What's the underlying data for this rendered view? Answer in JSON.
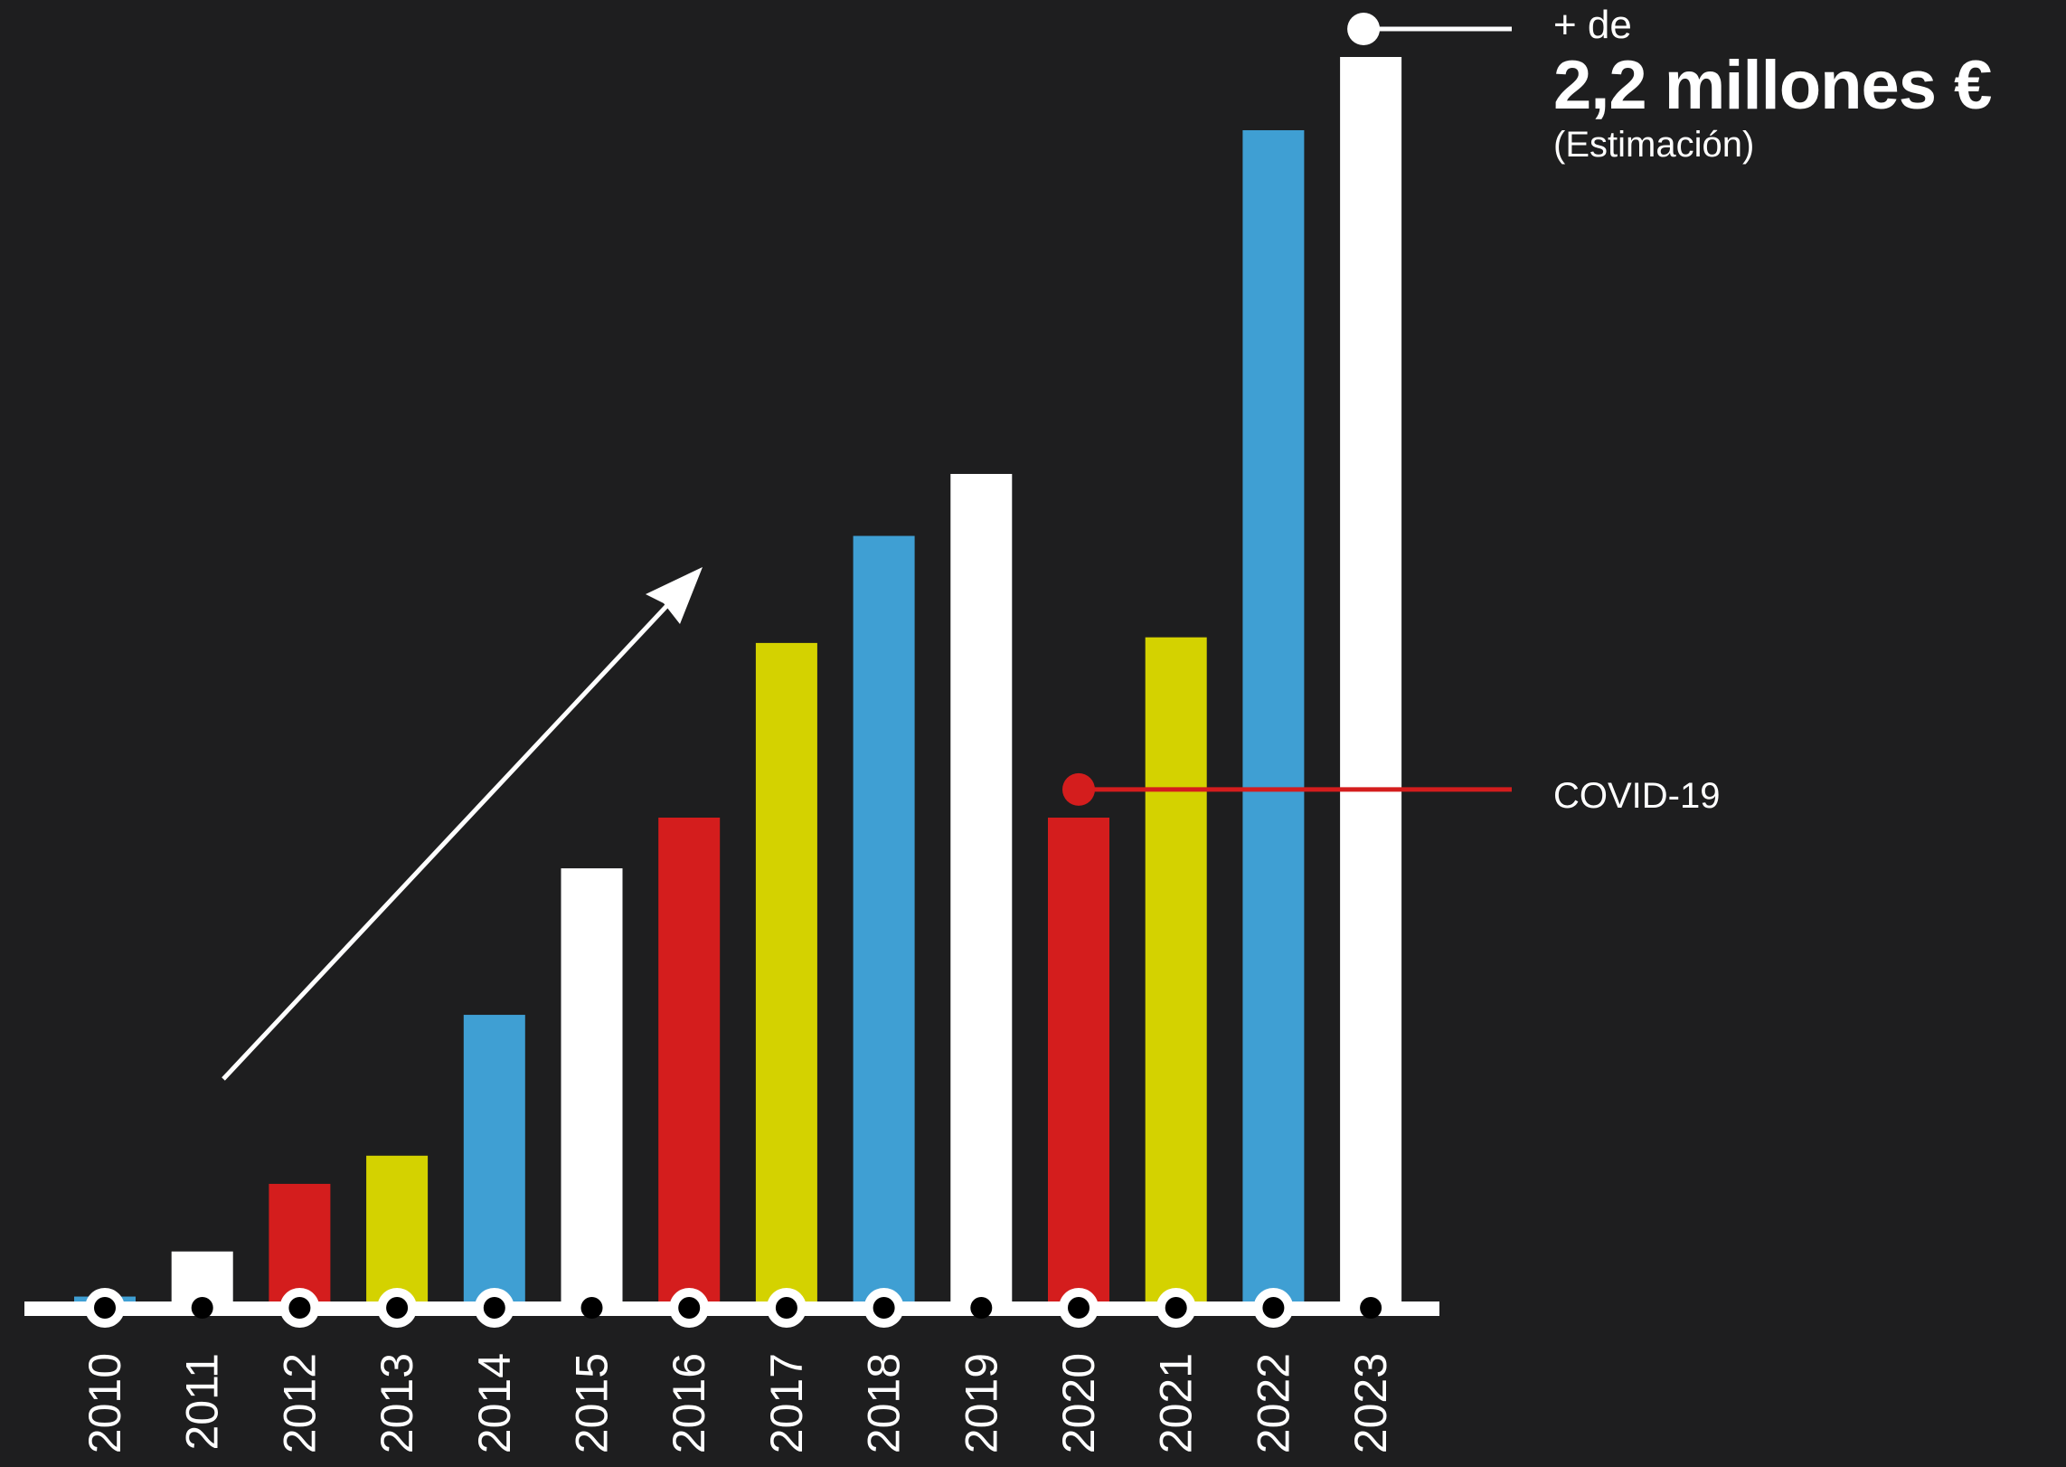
{
  "chart_data": {
    "type": "bar",
    "title": "",
    "xlabel": "",
    "ylabel": "",
    "categories": [
      "2010",
      "2011",
      "2012",
      "2013",
      "2014",
      "2015",
      "2016",
      "2017",
      "2018",
      "2019",
      "2020",
      "2021",
      "2022",
      "2023"
    ],
    "values": [
      0.02,
      0.1,
      0.22,
      0.27,
      0.52,
      0.78,
      0.87,
      1.18,
      1.37,
      1.48,
      0.87,
      1.19,
      2.09,
      2.22
    ],
    "ylim": [
      0,
      2.3
    ],
    "bar_colors": [
      "#3f9fd3",
      "#ffffff",
      "#d41d1d",
      "#d4d200",
      "#3f9fd3",
      "#ffffff",
      "#d41d1d",
      "#d4d200",
      "#3f9fd3",
      "#ffffff",
      "#d41d1d",
      "#d4d200",
      "#3f9fd3",
      "#ffffff"
    ],
    "axis_dot_style": [
      "ring",
      "dot",
      "ring",
      "ring",
      "ring",
      "dot",
      "ring",
      "ring",
      "ring",
      "dot",
      "ring",
      "ring",
      "ring",
      "dot"
    ],
    "grid": false,
    "legend": "none",
    "trend_arrow": true,
    "covid_marker_year": "2020",
    "covid_marker_value": 0.92,
    "top_marker_year": "2023"
  },
  "annotations": {
    "top_prefix": "+ de",
    "top_value": "2,2 millones €",
    "top_note": "(Estimación)",
    "covid_label": "COVID-19"
  },
  "colors": {
    "background": "#1e1e1f",
    "axis": "#ffffff",
    "covid_line": "#d41d1d",
    "arrow": "#ffffff",
    "text": "#ffffff"
  }
}
